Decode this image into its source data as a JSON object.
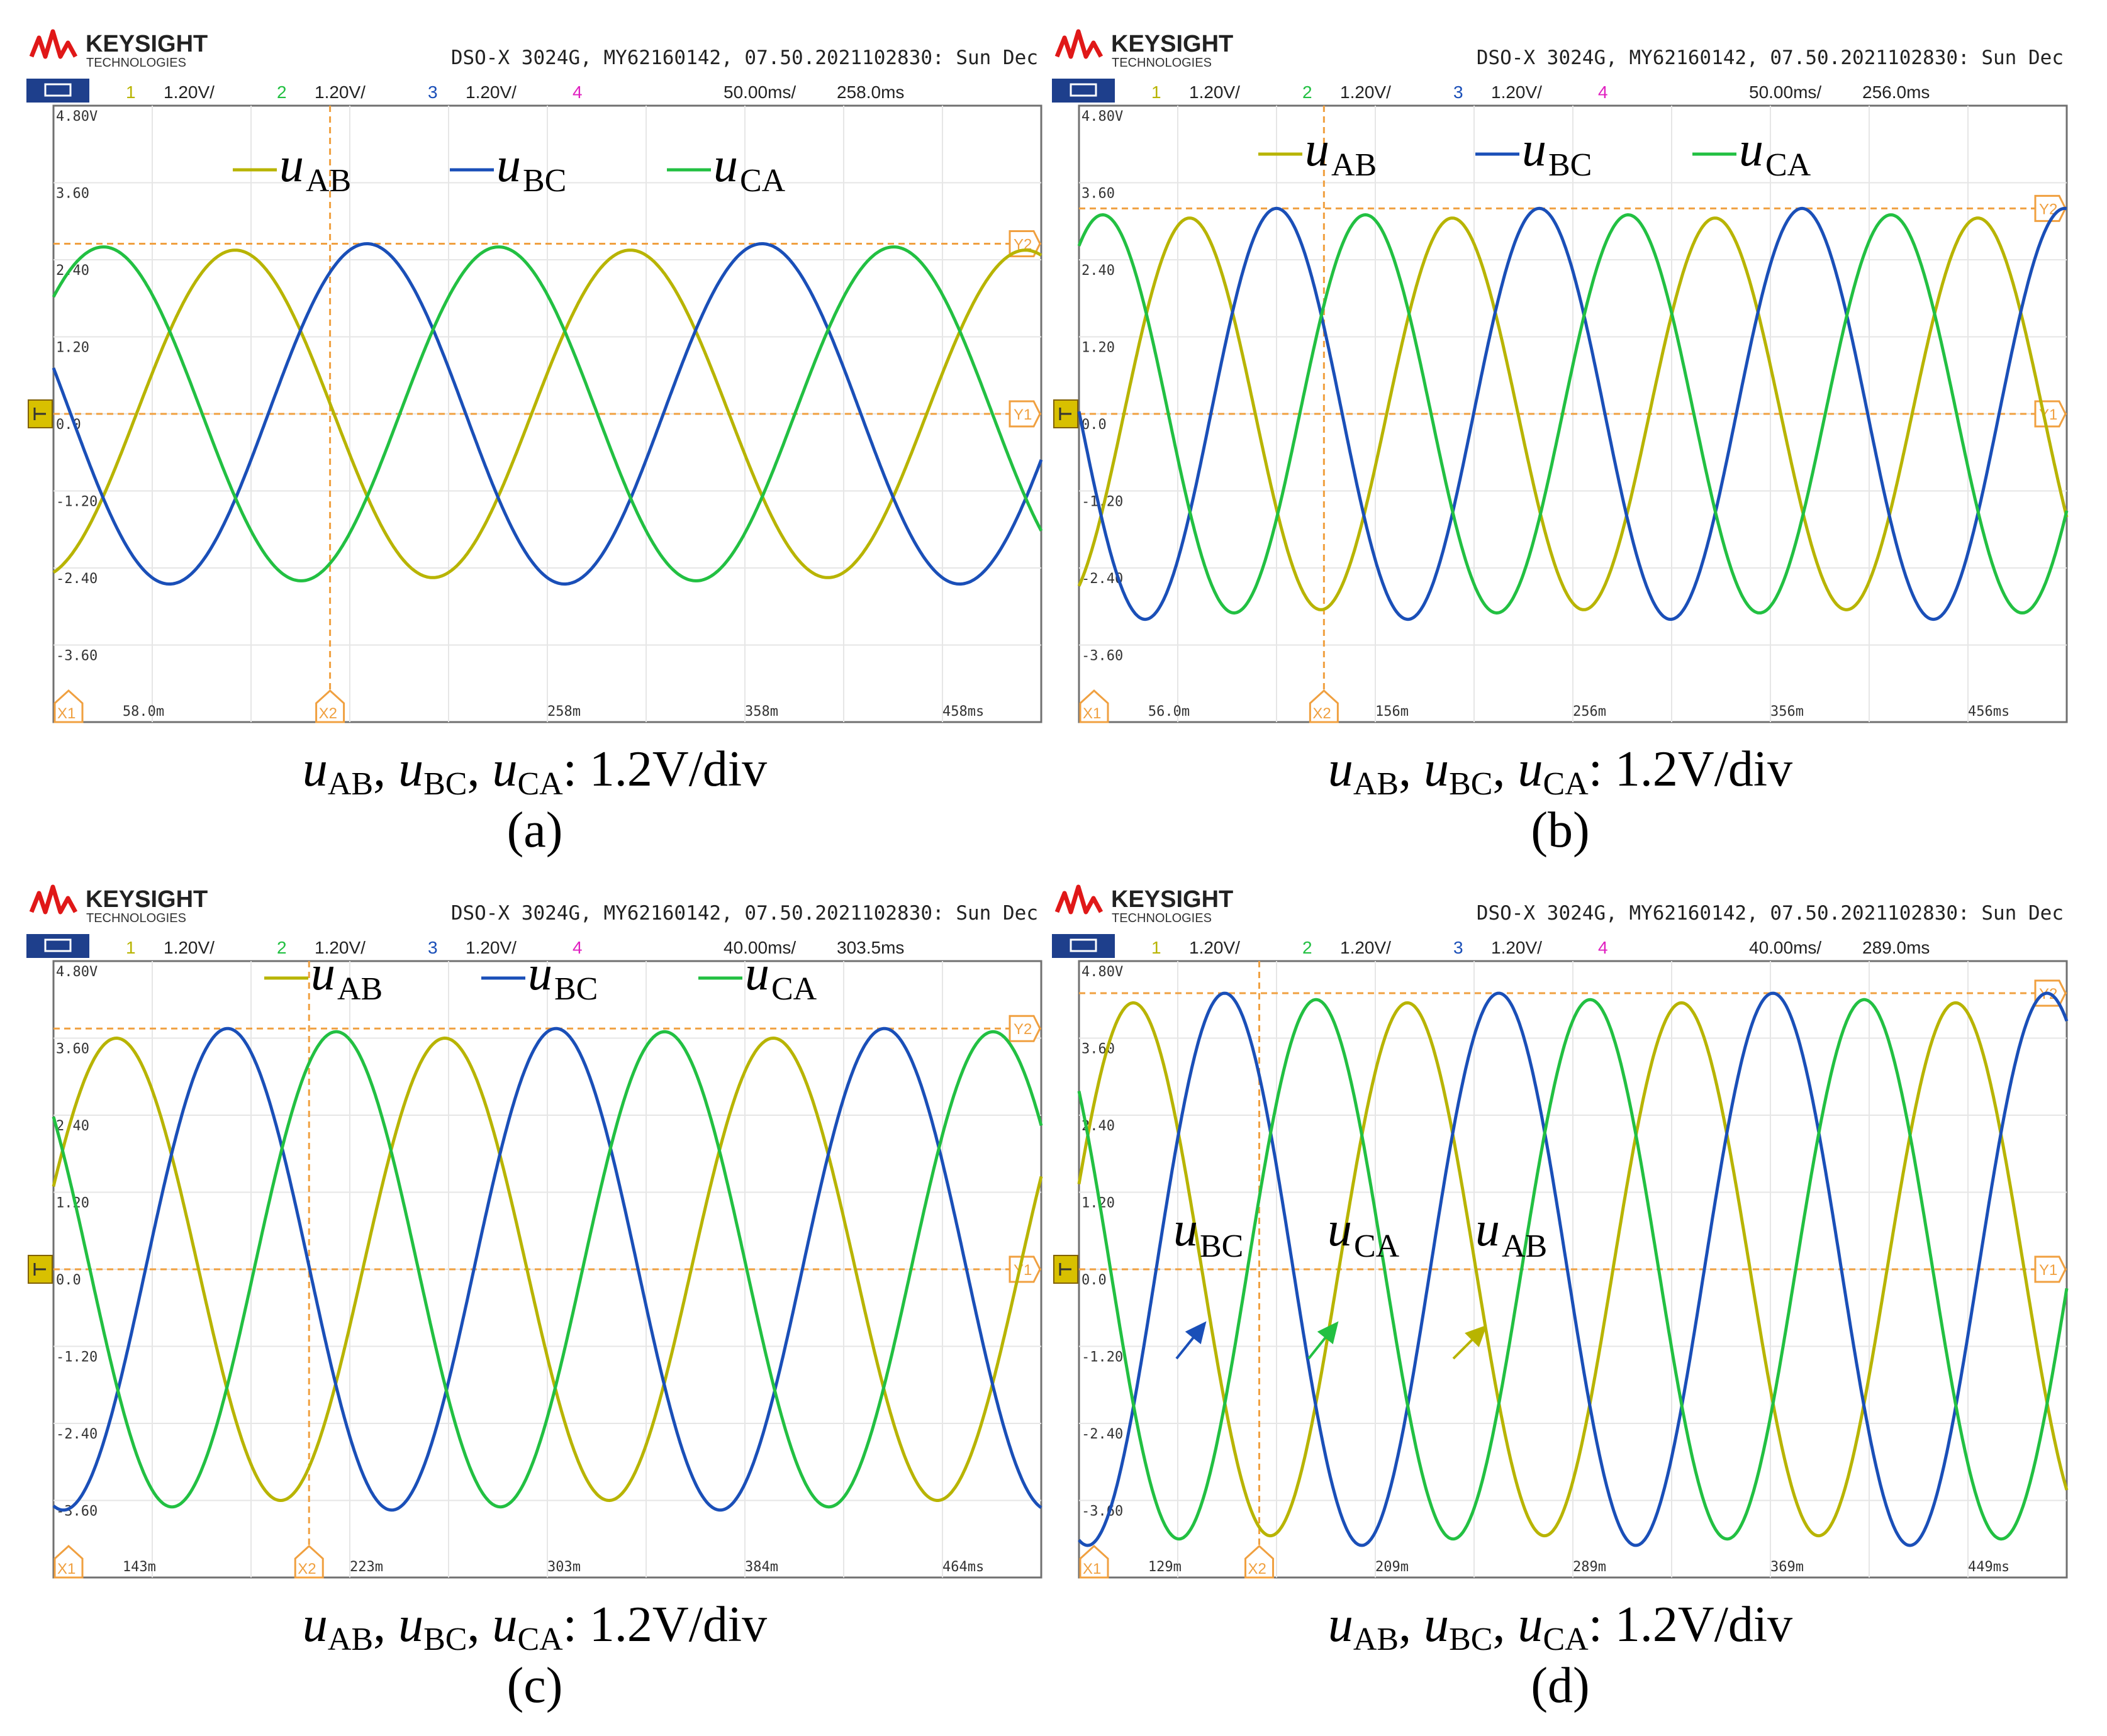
{
  "brand": {
    "name": "KEYSIGHT",
    "sub": "TECHNOLOGIES"
  },
  "colors": {
    "ch1": "#b8b400",
    "ch2": "#22c042",
    "ch3": "#1a4fb8",
    "ch4": "#e020c0",
    "cursor": "#f0a040",
    "frame": "#707070"
  },
  "unit_suffix": "V/div",
  "chart_data": [
    {
      "panel": "a",
      "type": "line",
      "header": "DSO-X 3024G, MY62160142, 07.50.2021102830: Sun Dec",
      "channels": [
        {
          "num": "1",
          "scale": "1.20V/"
        },
        {
          "num": "2",
          "scale": "1.20V/"
        },
        {
          "num": "3",
          "scale": "1.20V/"
        },
        {
          "num": "4",
          "scale": ""
        }
      ],
      "timebase": "50.00ms/",
      "delay": "258.0ms",
      "y_ticks": [
        "4.80V",
        "3.60",
        "2.40",
        "1.20",
        "0.0",
        "-1.20",
        "-2.40",
        "-3.60"
      ],
      "x_ticks": [
        "58.0m",
        "",
        "258m",
        "358m",
        "458ms"
      ],
      "legend_labels": [
        {
          "main": "u",
          "sub": "AB"
        },
        {
          "main": "u",
          "sub": "BC"
        },
        {
          "main": "u",
          "sub": "CA"
        }
      ],
      "caption": {
        "u1": "u",
        "s1": "AB",
        "u2": "u",
        "s2": "BC",
        "u3": "u",
        "s3": "CA",
        "rest": ": 1.2V/div",
        "letter": "(a)"
      },
      "time_range_ms": [
        8,
        508
      ],
      "ylim": [
        -4.8,
        4.8
      ],
      "series": [
        {
          "name": "uAB",
          "amplitude": 2.55,
          "period_ms": 200,
          "peak_time_ms": 100
        },
        {
          "name": "uBC",
          "amplitude": 2.65,
          "period_ms": 200,
          "peak_time_ms": 166.7
        },
        {
          "name": "uCA",
          "amplitude": 2.6,
          "period_ms": 200,
          "peak_time_ms": 233.3
        }
      ],
      "cursors": {
        "x1_ms": 8,
        "x2_ms": 148,
        "y1_v": 0.0,
        "y2_v": 2.65
      }
    },
    {
      "panel": "b",
      "type": "line",
      "header": "DSO-X 3024G, MY62160142, 07.50.2021102830: Sun Dec",
      "channels": [
        {
          "num": "1",
          "scale": "1.20V/"
        },
        {
          "num": "2",
          "scale": "1.20V/"
        },
        {
          "num": "3",
          "scale": "1.20V/"
        },
        {
          "num": "4",
          "scale": ""
        }
      ],
      "timebase": "50.00ms/",
      "delay": "256.0ms",
      "y_ticks": [
        "4.80V",
        "3.60",
        "2.40",
        "1.20",
        "0.0",
        "-1.20",
        "-2.40",
        "-3.60"
      ],
      "x_ticks": [
        "56.0m",
        "156m",
        "256m",
        "356m",
        "456ms"
      ],
      "legend_labels": [
        {
          "main": "u",
          "sub": "AB"
        },
        {
          "main": "u",
          "sub": "BC"
        },
        {
          "main": "u",
          "sub": "CA"
        }
      ],
      "caption": {
        "u1": "u",
        "s1": "AB",
        "u2": "u",
        "s2": "BC",
        "u3": "u",
        "s3": "CA",
        "rest": ": 1.2V/div",
        "letter": "(b)"
      },
      "time_range_ms": [
        6,
        506
      ],
      "ylim": [
        -4.8,
        4.8
      ],
      "series": [
        {
          "name": "uAB",
          "amplitude": 3.05,
          "period_ms": 133,
          "peak_time_ms": 62
        },
        {
          "name": "uBC",
          "amplitude": 3.2,
          "period_ms": 133,
          "peak_time_ms": 106
        },
        {
          "name": "uCA",
          "amplitude": 3.1,
          "period_ms": 133,
          "peak_time_ms": 151
        }
      ],
      "cursors": {
        "x1_ms": 6,
        "x2_ms": 130,
        "y1_v": 0.0,
        "y2_v": 3.2
      }
    },
    {
      "panel": "c",
      "type": "line",
      "header": "DSO-X 3024G, MY62160142, 07.50.2021102830: Sun Dec",
      "channels": [
        {
          "num": "1",
          "scale": "1.20V/"
        },
        {
          "num": "2",
          "scale": "1.20V/"
        },
        {
          "num": "3",
          "scale": "1.20V/"
        },
        {
          "num": "4",
          "scale": ""
        }
      ],
      "timebase": "40.00ms/",
      "delay": "303.5ms",
      "y_ticks": [
        "4.80V",
        "3.60",
        "2.40",
        "1.20",
        "0.0",
        "-1.20",
        "-2.40",
        "-3.60"
      ],
      "x_ticks": [
        "143m",
        "223m",
        "303m",
        "384m",
        "464ms"
      ],
      "legend_labels": [
        {
          "main": "u",
          "sub": "AB"
        },
        {
          "main": "u",
          "sub": "BC"
        },
        {
          "main": "u",
          "sub": "CA"
        }
      ],
      "caption": {
        "u1": "u",
        "s1": "AB",
        "u2": "u",
        "s2": "BC",
        "u3": "u",
        "s3": "CA",
        "rest": ": 1.2V/div",
        "letter": "(c)"
      },
      "time_range_ms": [
        103.5,
        503.5
      ],
      "ylim": [
        -4.8,
        4.8
      ],
      "series": [
        {
          "name": "uAB",
          "amplitude": 3.6,
          "period_ms": 133,
          "peak_time_ms": 262
        },
        {
          "name": "uBC",
          "amplitude": 3.75,
          "period_ms": 133,
          "peak_time_ms": 307
        },
        {
          "name": "uCA",
          "amplitude": 3.7,
          "period_ms": 133,
          "peak_time_ms": 351
        }
      ],
      "cursors": {
        "x1_ms": 103.5,
        "x2_ms": 207,
        "y1_v": 0.0,
        "y2_v": 3.75
      }
    },
    {
      "panel": "d",
      "type": "line",
      "header": "DSO-X 3024G, MY62160142, 07.50.2021102830: Sun Dec",
      "channels": [
        {
          "num": "1",
          "scale": "1.20V/"
        },
        {
          "num": "2",
          "scale": "1.20V/"
        },
        {
          "num": "3",
          "scale": "1.20V/"
        },
        {
          "num": "4",
          "scale": ""
        }
      ],
      "timebase": "40.00ms/",
      "delay": "289.0ms",
      "y_ticks": [
        "4.80V",
        "3.60",
        "2.40",
        "1.20",
        "0.0",
        "-1.20",
        "-2.40",
        "-3.60"
      ],
      "x_ticks": [
        "129m",
        "209m",
        "289m",
        "369m",
        "449ms"
      ],
      "legend_labels": [
        {
          "main": "u",
          "sub": "BC"
        },
        {
          "main": "u",
          "sub": "CA"
        },
        {
          "main": "u",
          "sub": "AB"
        }
      ],
      "caption": {
        "u1": "u",
        "s1": "AB",
        "u2": "u",
        "s2": "BC",
        "u3": "u",
        "s3": "CA",
        "rest": ": 1.2V/div",
        "letter": "(d)"
      },
      "time_range_ms": [
        89,
        489
      ],
      "ylim": [
        -4.8,
        4.8
      ],
      "series": [
        {
          "name": "uAB",
          "amplitude": 4.15,
          "period_ms": 111,
          "peak_time_ms": 222
        },
        {
          "name": "uBC",
          "amplitude": 4.3,
          "period_ms": 111,
          "peak_time_ms": 259
        },
        {
          "name": "uCA",
          "amplitude": 4.2,
          "period_ms": 111,
          "peak_time_ms": 185
        }
      ],
      "cursors": {
        "x1_ms": 89,
        "x2_ms": 162,
        "y1_v": 0.0,
        "y2_v": 4.3
      }
    }
  ]
}
